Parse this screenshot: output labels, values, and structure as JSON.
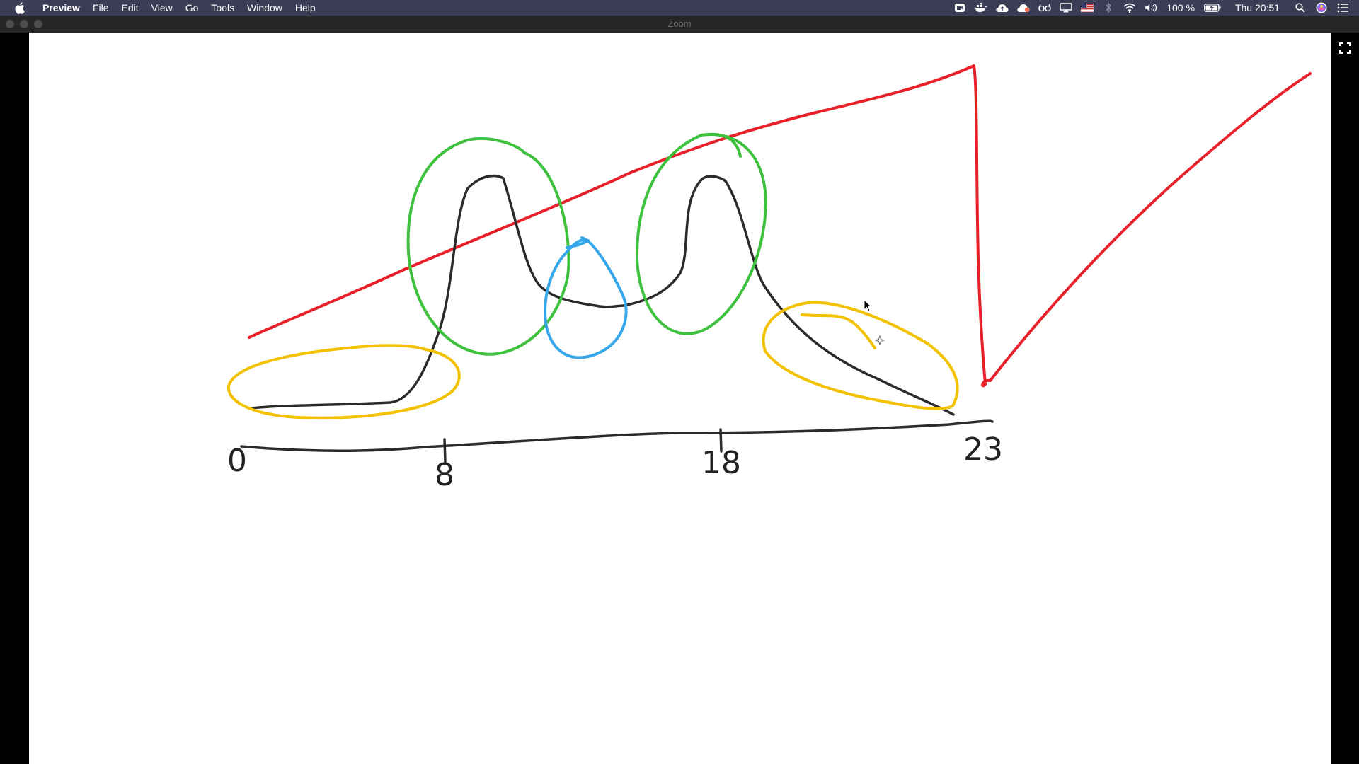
{
  "menubar": {
    "app_name": "Preview",
    "items": [
      "File",
      "Edit",
      "View",
      "Go",
      "Tools",
      "Window",
      "Help"
    ],
    "battery": "100 %",
    "clock": "Thu 20:51"
  },
  "window": {
    "title": "Zoom"
  },
  "drawing": {
    "axis_labels": [
      "0",
      "8",
      "18",
      "23"
    ],
    "stroke_colors": {
      "curve": "#2b2b2b",
      "trend": "#e8202a",
      "peaks": "#3ec23e",
      "valley": "#35a7ea",
      "tails": "#f2c100"
    }
  },
  "icons": {
    "apple": "apple-icon",
    "fullscreen": "fullscreen-icon",
    "cursor": "mouse-cursor-icon"
  }
}
